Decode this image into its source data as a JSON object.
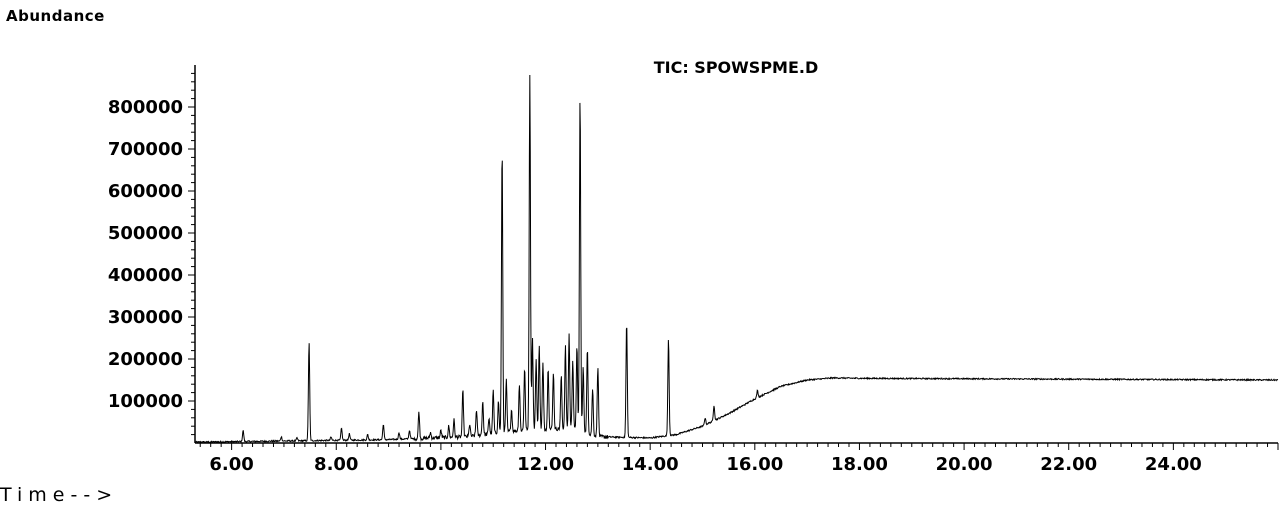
{
  "chart_data": {
    "type": "line",
    "title": "TIC: SPOWSPME.D",
    "ylabel": "Abundance",
    "xlabel": "Time-->",
    "xlim": [
      5.3,
      26.0
    ],
    "ylim": [
      0,
      900000
    ],
    "x_ticks": [
      6.0,
      8.0,
      10.0,
      12.0,
      14.0,
      16.0,
      18.0,
      20.0,
      22.0,
      24.0
    ],
    "x_tick_labels": [
      "6.00",
      "8.00",
      "10.00",
      "12.00",
      "14.00",
      "16.00",
      "18.00",
      "20.00",
      "22.00",
      "24.00"
    ],
    "y_ticks": [
      100000,
      200000,
      300000,
      400000,
      500000,
      600000,
      700000,
      800000
    ],
    "y_tick_labels": [
      "100000",
      "200000",
      "300000",
      "400000",
      "500000",
      "600000",
      "700000",
      "800000"
    ],
    "grid": false,
    "series": [
      {
        "color": "#000000",
        "baseline": [
          [
            5.3,
            2000
          ],
          [
            9.0,
            8000
          ],
          [
            10.5,
            15000
          ],
          [
            11.5,
            30000
          ],
          [
            12.5,
            35000
          ],
          [
            13.0,
            15000
          ],
          [
            14.0,
            12000
          ],
          [
            14.5,
            20000
          ],
          [
            15.0,
            40000
          ],
          [
            15.5,
            70000
          ],
          [
            16.0,
            105000
          ],
          [
            16.5,
            135000
          ],
          [
            17.0,
            150000
          ],
          [
            17.5,
            155000
          ],
          [
            18.0,
            154000
          ],
          [
            22.0,
            152000
          ],
          [
            26.0,
            150000
          ]
        ],
        "peaks": [
          {
            "x": 6.22,
            "y": 30000
          },
          {
            "x": 6.95,
            "y": 15000
          },
          {
            "x": 7.25,
            "y": 12000
          },
          {
            "x": 7.48,
            "y": 240000
          },
          {
            "x": 7.9,
            "y": 14000
          },
          {
            "x": 8.1,
            "y": 35000
          },
          {
            "x": 8.25,
            "y": 22000
          },
          {
            "x": 8.6,
            "y": 20000
          },
          {
            "x": 8.9,
            "y": 45000
          },
          {
            "x": 9.2,
            "y": 25000
          },
          {
            "x": 9.4,
            "y": 30000
          },
          {
            "x": 9.58,
            "y": 75000
          },
          {
            "x": 9.8,
            "y": 25000
          },
          {
            "x": 10.0,
            "y": 30000
          },
          {
            "x": 10.15,
            "y": 40000
          },
          {
            "x": 10.25,
            "y": 55000
          },
          {
            "x": 10.42,
            "y": 125000
          },
          {
            "x": 10.55,
            "y": 45000
          },
          {
            "x": 10.68,
            "y": 80000
          },
          {
            "x": 10.8,
            "y": 100000
          },
          {
            "x": 10.92,
            "y": 60000
          },
          {
            "x": 11.0,
            "y": 125000
          },
          {
            "x": 11.1,
            "y": 100000
          },
          {
            "x": 11.17,
            "y": 705000
          },
          {
            "x": 11.25,
            "y": 150000
          },
          {
            "x": 11.35,
            "y": 80000
          },
          {
            "x": 11.5,
            "y": 140000
          },
          {
            "x": 11.6,
            "y": 180000
          },
          {
            "x": 11.7,
            "y": 880000
          },
          {
            "x": 11.75,
            "y": 250000
          },
          {
            "x": 11.82,
            "y": 200000
          },
          {
            "x": 11.88,
            "y": 235000
          },
          {
            "x": 11.95,
            "y": 190000
          },
          {
            "x": 12.05,
            "y": 180000
          },
          {
            "x": 12.15,
            "y": 170000
          },
          {
            "x": 12.3,
            "y": 160000
          },
          {
            "x": 12.38,
            "y": 230000
          },
          {
            "x": 12.45,
            "y": 260000
          },
          {
            "x": 12.52,
            "y": 200000
          },
          {
            "x": 12.6,
            "y": 230000
          },
          {
            "x": 12.66,
            "y": 830000
          },
          {
            "x": 12.72,
            "y": 180000
          },
          {
            "x": 12.8,
            "y": 225000
          },
          {
            "x": 12.9,
            "y": 130000
          },
          {
            "x": 13.0,
            "y": 185000
          },
          {
            "x": 13.55,
            "y": 290000
          },
          {
            "x": 14.35,
            "y": 250000
          },
          {
            "x": 15.05,
            "y": 60000
          },
          {
            "x": 15.22,
            "y": 90000
          },
          {
            "x": 16.05,
            "y": 125000
          }
        ]
      }
    ]
  }
}
